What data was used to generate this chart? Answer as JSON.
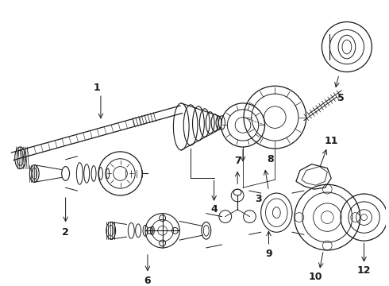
{
  "bg_color": "#ffffff",
  "lc": "#1a1a1a",
  "figsize": [
    4.9,
    3.6
  ],
  "dpi": 100,
  "xlim": [
    0,
    490
  ],
  "ylim": [
    0,
    360
  ]
}
